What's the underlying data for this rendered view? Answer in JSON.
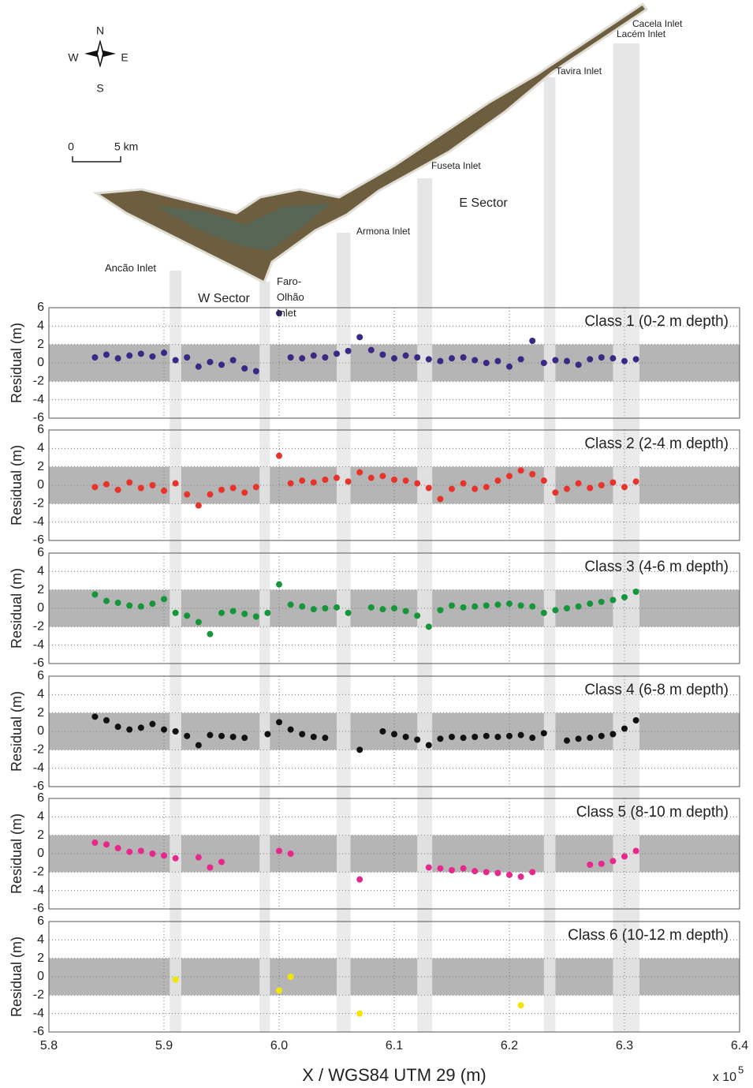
{
  "map": {
    "compass": {
      "north": "N",
      "south": "S",
      "east": "E",
      "west": "W"
    },
    "scale_bar": {
      "start": "0",
      "end": "5 km"
    },
    "inlets": [
      "Ancão Inlet",
      "Faro-Olhão Inlet",
      "Armona Inlet",
      "Fuseta Inlet",
      "Tavira Inlet",
      "Cacela Inlet",
      "Lacém Inlet"
    ],
    "sectors": [
      "W Sector",
      "E Sector"
    ]
  },
  "inlet_bands": [
    [
      5.905,
      5.915
    ],
    [
      5.983,
      5.992
    ],
    [
      6.05,
      6.062
    ],
    [
      6.12,
      6.133
    ],
    [
      6.23,
      6.24
    ],
    [
      6.29,
      6.313
    ]
  ],
  "chart_data": [
    {
      "type": "scatter",
      "title": "Class 1 (0-2 m depth)",
      "y_label": "Residual (m)",
      "color": "#3b2784",
      "xlim": [
        5.8,
        6.4
      ],
      "xticks": [
        5.8,
        5.9,
        6,
        6.1,
        6.2,
        6.3,
        6.4
      ],
      "ylim": [
        -6,
        6
      ],
      "yticks": [
        6,
        4,
        2,
        0,
        -2,
        -4,
        -6
      ],
      "shaded_band": [
        -2,
        2
      ],
      "grid": true,
      "x": [
        5.84,
        5.85,
        5.86,
        5.87,
        5.88,
        5.89,
        5.9,
        5.91,
        5.92,
        5.93,
        5.94,
        5.95,
        5.96,
        5.97,
        5.98,
        5.99,
        6,
        6.01,
        6.02,
        6.03,
        6.04,
        6.05,
        6.06,
        6.07,
        6.08,
        6.09,
        6.1,
        6.11,
        6.12,
        6.13,
        6.14,
        6.15,
        6.16,
        6.17,
        6.18,
        6.19,
        6.2,
        6.21,
        6.22,
        6.23,
        6.24,
        6.25,
        6.26,
        6.27,
        6.28,
        6.29,
        6.3,
        6.31
      ],
      "values": [
        0.6,
        0.9,
        0.5,
        0.8,
        1.0,
        0.7,
        1.1,
        0.3,
        0.6,
        -0.4,
        0.1,
        -0.2,
        0.3,
        -0.6,
        -0.9,
        null,
        5.4,
        0.6,
        0.5,
        0.8,
        0.6,
        1.0,
        1.3,
        2.8,
        1.4,
        0.9,
        0.5,
        0.8,
        0.6,
        0.4,
        0.2,
        0.5,
        0.6,
        0.3,
        0.0,
        0.2,
        -0.4,
        0.4,
        2.4,
        0.0,
        0.3,
        0.2,
        -0.2,
        0.4,
        0.6,
        0.5,
        0.2,
        0.4
      ]
    },
    {
      "type": "scatter",
      "title": "Class 2 (2-4 m depth)",
      "y_label": "Residual (m)",
      "color": "#e8332a",
      "xlim": [
        5.8,
        6.4
      ],
      "xticks": [
        5.8,
        5.9,
        6,
        6.1,
        6.2,
        6.3,
        6.4
      ],
      "ylim": [
        -6,
        6
      ],
      "yticks": [
        6,
        4,
        2,
        0,
        -2,
        -4,
        -6
      ],
      "shaded_band": [
        -2,
        2
      ],
      "grid": true,
      "x": [
        5.84,
        5.85,
        5.86,
        5.87,
        5.88,
        5.89,
        5.9,
        5.91,
        5.92,
        5.93,
        5.94,
        5.95,
        5.96,
        5.97,
        5.98,
        5.99,
        6,
        6.01,
        6.02,
        6.03,
        6.04,
        6.05,
        6.06,
        6.07,
        6.08,
        6.09,
        6.1,
        6.11,
        6.12,
        6.13,
        6.14,
        6.15,
        6.16,
        6.17,
        6.18,
        6.19,
        6.2,
        6.21,
        6.22,
        6.23,
        6.24,
        6.25,
        6.26,
        6.27,
        6.28,
        6.29,
        6.3,
        6.31
      ],
      "values": [
        -0.2,
        0.1,
        -0.5,
        0.3,
        -0.3,
        0,
        -0.6,
        0.2,
        -1.0,
        -2.2,
        -1.0,
        -0.5,
        -0.3,
        -0.8,
        -0.2,
        null,
        3.2,
        0.2,
        0.5,
        0.3,
        0.6,
        0.8,
        0.4,
        1.4,
        0.8,
        1.0,
        0.6,
        0.5,
        0.2,
        -0.3,
        -1.5,
        -0.4,
        0.2,
        -0.4,
        -0.2,
        0.5,
        1.0,
        1.6,
        1.2,
        0.5,
        -0.8,
        -0.4,
        0.2,
        -0.3,
        0.0,
        0.3,
        -0.2,
        0.4
      ]
    },
    {
      "type": "scatter",
      "title": "Class 3 (4-6 m depth)",
      "y_label": "Residual (m)",
      "color": "#16963a",
      "xlim": [
        5.8,
        6.4
      ],
      "xticks": [
        5.8,
        5.9,
        6,
        6.1,
        6.2,
        6.3,
        6.4
      ],
      "ylim": [
        -6,
        6
      ],
      "yticks": [
        6,
        4,
        2,
        0,
        -2,
        -4,
        -6
      ],
      "shaded_band": [
        -2,
        2
      ],
      "grid": true,
      "x": [
        5.84,
        5.85,
        5.86,
        5.87,
        5.88,
        5.89,
        5.9,
        5.91,
        5.92,
        5.93,
        5.94,
        5.95,
        5.96,
        5.97,
        5.98,
        5.99,
        6,
        6.01,
        6.02,
        6.03,
        6.04,
        6.05,
        6.06,
        6.07,
        6.08,
        6.09,
        6.1,
        6.11,
        6.12,
        6.13,
        6.14,
        6.15,
        6.16,
        6.17,
        6.18,
        6.19,
        6.2,
        6.21,
        6.22,
        6.23,
        6.24,
        6.25,
        6.26,
        6.27,
        6.28,
        6.29,
        6.3,
        6.31
      ],
      "values": [
        1.5,
        0.8,
        0.6,
        0.3,
        0.2,
        0.5,
        1.0,
        -0.5,
        -0.8,
        -1.5,
        -2.8,
        -0.5,
        -0.3,
        -0.6,
        -0.9,
        -0.5,
        2.6,
        0.4,
        0.2,
        -0.1,
        0.0,
        0.1,
        -0.5,
        null,
        0.1,
        -0.1,
        0.0,
        -0.3,
        -0.8,
        -2.0,
        -0.2,
        0.3,
        0.1,
        0.2,
        0.3,
        0.4,
        0.5,
        0.3,
        0.2,
        -0.5,
        -0.2,
        0.0,
        0.2,
        0.5,
        0.7,
        0.9,
        1.2,
        1.8
      ]
    },
    {
      "type": "scatter",
      "title": "Class 4 (6-8 m depth)",
      "y_label": "Residual (m)",
      "color": "#111111",
      "xlim": [
        5.8,
        6.4
      ],
      "xticks": [
        5.8,
        5.9,
        6,
        6.1,
        6.2,
        6.3,
        6.4
      ],
      "ylim": [
        -6,
        6
      ],
      "yticks": [
        6,
        4,
        2,
        0,
        -2,
        -4,
        -6
      ],
      "shaded_band": [
        -2,
        2
      ],
      "grid": true,
      "x": [
        5.84,
        5.85,
        5.86,
        5.87,
        5.88,
        5.89,
        5.9,
        5.91,
        5.92,
        5.93,
        5.94,
        5.95,
        5.96,
        5.97,
        5.98,
        5.99,
        6,
        6.01,
        6.02,
        6.03,
        6.04,
        6.05,
        6.06,
        6.07,
        6.08,
        6.09,
        6.1,
        6.11,
        6.12,
        6.13,
        6.14,
        6.15,
        6.16,
        6.17,
        6.18,
        6.19,
        6.2,
        6.21,
        6.22,
        6.23,
        6.24,
        6.25,
        6.26,
        6.27,
        6.28,
        6.29,
        6.3,
        6.31
      ],
      "values": [
        1.6,
        1.2,
        0.5,
        0.2,
        0.4,
        0.8,
        0.2,
        0.0,
        -0.5,
        -1.5,
        -0.4,
        -0.5,
        -0.6,
        -0.7,
        null,
        -0.3,
        1.0,
        0.2,
        -0.3,
        -0.6,
        -0.7,
        null,
        null,
        -2.0,
        null,
        0.0,
        -0.3,
        -0.6,
        -0.9,
        -1.5,
        -0.8,
        -0.6,
        -0.7,
        -0.6,
        -0.5,
        -0.6,
        -0.5,
        -0.4,
        -0.7,
        -0.2,
        null,
        -1.0,
        -0.8,
        -0.7,
        -0.5,
        -0.3,
        0.3,
        1.2
      ]
    },
    {
      "type": "scatter",
      "title": "Class 5 (8-10 m depth)",
      "y_label": "Residual (m)",
      "color": "#e8278c",
      "xlim": [
        5.8,
        6.4
      ],
      "xticks": [
        5.8,
        5.9,
        6,
        6.1,
        6.2,
        6.3,
        6.4
      ],
      "ylim": [
        -6,
        6
      ],
      "yticks": [
        6,
        4,
        2,
        0,
        -2,
        -4,
        -6
      ],
      "shaded_band": [
        -2,
        2
      ],
      "grid": true,
      "x": [
        5.84,
        5.85,
        5.86,
        5.87,
        5.88,
        5.89,
        5.9,
        5.91,
        5.92,
        5.93,
        5.94,
        5.95,
        5.96,
        5.97,
        5.98,
        5.99,
        6,
        6.01,
        6.02,
        6.03,
        6.04,
        6.05,
        6.06,
        6.07,
        6.08,
        6.09,
        6.1,
        6.11,
        6.12,
        6.13,
        6.14,
        6.15,
        6.16,
        6.17,
        6.18,
        6.19,
        6.2,
        6.21,
        6.22,
        6.23,
        6.24,
        6.25,
        6.26,
        6.27,
        6.28,
        6.29,
        6.3,
        6.31
      ],
      "values": [
        1.2,
        1.0,
        0.6,
        0.2,
        0.3,
        0.0,
        -0.2,
        -0.5,
        null,
        -0.4,
        -1.5,
        -0.9,
        null,
        null,
        null,
        null,
        0.3,
        0.0,
        null,
        null,
        null,
        null,
        null,
        -2.8,
        null,
        null,
        null,
        null,
        null,
        -1.5,
        -1.6,
        -1.8,
        -1.6,
        -1.9,
        -2.0,
        -2.1,
        -2.3,
        -2.5,
        -2.0,
        null,
        null,
        null,
        null,
        -1.2,
        -1.1,
        -0.8,
        -0.3,
        0.3
      ]
    },
    {
      "type": "scatter",
      "title": "Class 6 (10-12 m depth)",
      "y_label": "Residual (m)",
      "color": "#f2e600",
      "x_label": "X / WGS84 UTM 29 (m)",
      "x_multiplier": "x 10",
      "x_multiplier_exponent": "5",
      "xlim": [
        5.8,
        6.4
      ],
      "xticks": [
        5.8,
        5.9,
        {
          "value": 6,
          "label": "6.0"
        },
        6.1,
        6.2,
        6.3,
        6.4
      ],
      "ylim": [
        -6,
        6
      ],
      "yticks": [
        6,
        4,
        2,
        0,
        -2,
        -4,
        -6
      ],
      "shaded_band": [
        -2,
        2
      ],
      "grid": true,
      "x": [
        5.84,
        5.85,
        5.86,
        5.87,
        5.88,
        5.89,
        5.9,
        5.91,
        5.92,
        5.93,
        5.94,
        5.95,
        5.96,
        5.97,
        5.98,
        5.99,
        6,
        6.01,
        6.02,
        6.03,
        6.04,
        6.05,
        6.06,
        6.07,
        6.08,
        6.09,
        6.1,
        6.11,
        6.12,
        6.13,
        6.14,
        6.15,
        6.16,
        6.17,
        6.18,
        6.19,
        6.2,
        6.21,
        6.22,
        6.23,
        6.24,
        6.25,
        6.26,
        6.27,
        6.28,
        6.29,
        6.3,
        6.31
      ],
      "values": [
        null,
        null,
        null,
        null,
        null,
        null,
        null,
        -0.3,
        null,
        null,
        null,
        null,
        null,
        null,
        null,
        null,
        -1.5,
        0.0,
        null,
        null,
        null,
        null,
        null,
        -4.0,
        null,
        null,
        null,
        null,
        null,
        null,
        null,
        null,
        null,
        null,
        null,
        null,
        null,
        -3.1,
        null,
        null,
        null,
        null,
        null,
        null,
        null,
        null,
        null,
        null
      ]
    }
  ]
}
